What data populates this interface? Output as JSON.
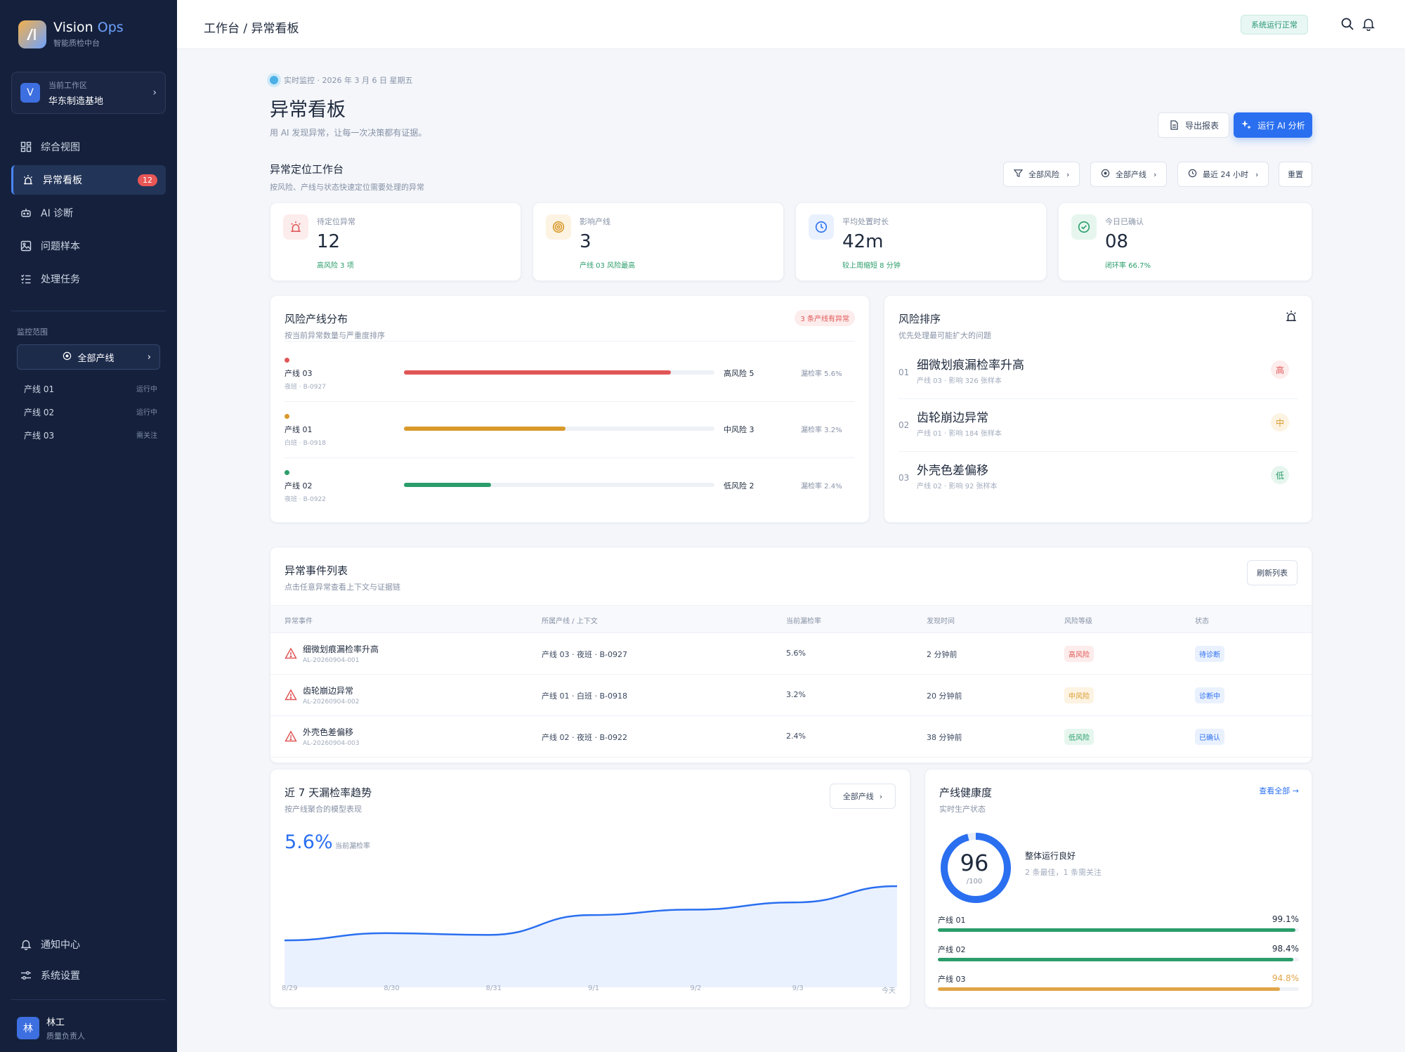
{
  "brand": {
    "name_a": "Vision",
    "name_b": "Ops",
    "subtitle": "智能质检中台"
  },
  "workspace": {
    "avatar": "V",
    "label": "当前工作区",
    "name": "华东制造基地"
  },
  "nav": [
    {
      "label": "综合视图",
      "icon": "dashboard-icon"
    },
    {
      "label": "异常看板",
      "icon": "alarm-icon",
      "badge": "12",
      "active": true
    },
    {
      "label": "AI 诊断",
      "icon": "robot-icon"
    },
    {
      "label": "问题样本",
      "icon": "image-icon"
    },
    {
      "label": "处理任务",
      "icon": "task-list-icon"
    }
  ],
  "scope": {
    "title": "监控范围",
    "select": "全部产线",
    "lines": [
      {
        "name": "产线 01",
        "status": "运行中"
      },
      {
        "name": "产线 02",
        "status": "运行中"
      },
      {
        "name": "产线 03",
        "status": "需关注"
      }
    ]
  },
  "footer_nav": [
    {
      "label": "通知中心",
      "icon": "bell-icon"
    },
    {
      "label": "系统设置",
      "icon": "settings-icon"
    }
  ],
  "user": {
    "avatar": "林",
    "name": "林工",
    "role": "质量负责人"
  },
  "topbar": {
    "breadcrumb": "工作台 / 异常看板",
    "status": "系统运行正常"
  },
  "header": {
    "live": "实时监控 · 2026 年 3 月 6 日 星期五",
    "title": "异常看板",
    "subtitle": "用 AI 发现异常，让每一次决策都有证据。",
    "export": "导出报表",
    "run_ai": "运行 AI 分析"
  },
  "workbench": {
    "title": "异常定位工作台",
    "subtitle": "按风险、产线与状态快速定位需要处理的异常",
    "filters": [
      "全部风险",
      "全部产线",
      "最近 24 小时"
    ],
    "reset": "重置"
  },
  "kpis": [
    {
      "label": "待定位异常",
      "value": "12",
      "note": "高风险 3 项",
      "icon": "alarm-icon",
      "color": "#e05656"
    },
    {
      "label": "影响产线",
      "value": "3",
      "note": "产线 03 风险最高",
      "icon": "target-icon",
      "color": "#d99a2b"
    },
    {
      "label": "平均处置时长",
      "value": "42m",
      "note": "较上周缩短 8 分钟",
      "icon": "clock-icon",
      "color": "#2a6ff0"
    },
    {
      "label": "今日已确认",
      "value": "08",
      "note": "闭环率 66.7%",
      "icon": "check-circle-icon",
      "color": "#2a9d6a"
    }
  ],
  "risk_dist": {
    "title": "风险产线分布",
    "subtitle": "按当前异常数量与严重度排序",
    "tag": "3 条产线有异常",
    "rows": [
      {
        "name": "产线 03",
        "sub": "夜班 · B-0927",
        "level": "高风险 5",
        "rate": "漏检率 5.6%",
        "pct": 0.86,
        "color": "#e05656"
      },
      {
        "name": "产线 01",
        "sub": "白班 · B-0918",
        "level": "中风险 3",
        "rate": "漏检率 3.2%",
        "pct": 0.52,
        "color": "#d99a2b"
      },
      {
        "name": "产线 02",
        "sub": "夜班 · B-0922",
        "level": "低风险 2",
        "rate": "漏检率 2.4%",
        "pct": 0.28,
        "color": "#2a9d6a"
      }
    ]
  },
  "risk_rank": {
    "title": "风险排序",
    "subtitle": "优先处理最可能扩大的问题",
    "items": [
      {
        "idx": "01",
        "name": "细微划痕漏检率升高",
        "sub": "产线 03 · 影响 326 张样本",
        "level": "高",
        "color": "#e05656",
        "bg": "#fdecec"
      },
      {
        "idx": "02",
        "name": "齿轮崩边异常",
        "sub": "产线 01 · 影响 184 张样本",
        "level": "中",
        "color": "#d99a2b",
        "bg": "#fdf3e2"
      },
      {
        "idx": "03",
        "name": "外壳色差偏移",
        "sub": "产线 02 · 影响 92 张样本",
        "level": "低",
        "color": "#2a9d6a",
        "bg": "#e6f6ee"
      }
    ]
  },
  "events": {
    "title": "异常事件列表",
    "subtitle": "点击任意异常查看上下文与证据链",
    "refresh": "刷新列表",
    "headers": [
      "异常事件",
      "所属产线 / 上下文",
      "当前漏检率",
      "发现时间",
      "风险等级",
      "状态"
    ],
    "rows": [
      {
        "name": "细微划痕漏检率升高",
        "id": "AL-20260904-001",
        "context": "产线 03 · 夜班 · B-0927",
        "rate": "5.6%",
        "time": "2 分钟前",
        "risk": "高风险",
        "status": "待诊断",
        "risk_color": "#e05656",
        "risk_bg": "#fdecec",
        "status_color": "#2a6ff0",
        "status_bg": "#eaf1fe"
      },
      {
        "name": "齿轮崩边异常",
        "id": "AL-20260904-002",
        "context": "产线 01 · 白班 · B-0918",
        "rate": "3.2%",
        "time": "20 分钟前",
        "risk": "中风险",
        "status": "诊断中",
        "risk_color": "#d99a2b",
        "risk_bg": "#fdf3e2",
        "status_color": "#2a6ff0",
        "status_bg": "#eaf1fe"
      },
      {
        "name": "外壳色差偏移",
        "id": "AL-20260904-003",
        "context": "产线 02 · 夜班 · B-0922",
        "rate": "2.4%",
        "time": "38 分钟前",
        "risk": "低风险",
        "status": "已确认",
        "risk_color": "#2a9d6a",
        "risk_bg": "#e6f6ee",
        "status_color": "#2a6ff0",
        "status_bg": "#eaf1fe"
      }
    ]
  },
  "trend": {
    "title": "近 7 天漏检率趋势",
    "subtitle": "按产线聚合的模型表现",
    "filter": "全部产线",
    "current": "5.6%",
    "current_label": "当前漏检率"
  },
  "chart_data": {
    "type": "area",
    "x": [
      "8/29",
      "8/30",
      "8/31",
      "9/1",
      "9/2",
      "9/3",
      "今天"
    ],
    "series": [
      {
        "values": [
          2.6,
          3.0,
          2.9,
          4.0,
          4.3,
          4.7,
          5.6
        ]
      }
    ],
    "ylim": [
      0,
      7
    ],
    "color": "#2a6ff0",
    "fill": "#eaf1fe"
  },
  "health": {
    "title": "产线健康度",
    "subtitle": "实时生产状态",
    "link": "查看全部 →",
    "score": "96",
    "score_max": "/100",
    "score_value": 96,
    "status": "整体运行良好",
    "detail": "2 条最佳，1 条需关注",
    "lines": [
      {
        "name": "产线 01",
        "pct": "99.1%",
        "value": 0.991,
        "color": "#2a9d6a",
        "text_color": "#1f2a3d"
      },
      {
        "name": "产线 02",
        "pct": "98.4%",
        "value": 0.984,
        "color": "#2a9d6a",
        "text_color": "#1f2a3d"
      },
      {
        "name": "产线 03",
        "pct": "94.8%",
        "value": 0.948,
        "color": "#e0a548",
        "text_color": "#e0a548"
      }
    ]
  }
}
